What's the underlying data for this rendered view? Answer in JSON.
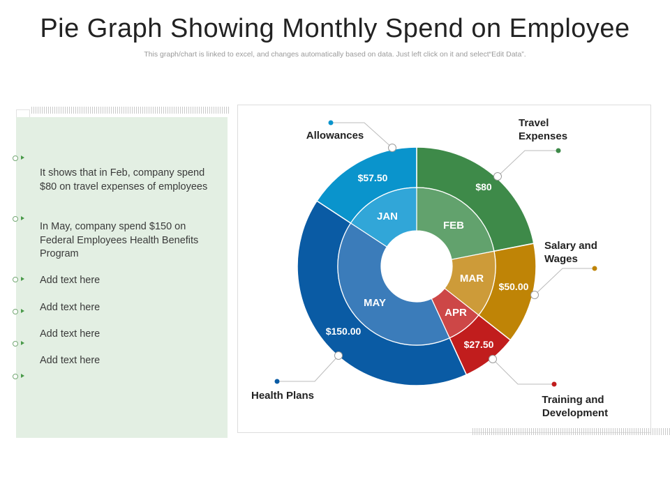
{
  "title": "Pie Graph Showing Monthly Spend on Employee",
  "subtitle": "This graph/chart is linked to excel, and changes automatically based on data. Just left click on it and select“Edit Data”.",
  "bullets": [
    {
      "text": "It shows that in Feb, company spend $80 on travel expenses of employees"
    },
    {
      "text": "In May, company spend $150 on Federal Employees Health Benefits Program"
    },
    {
      "text": "Add text here"
    },
    {
      "text": "Add text here"
    },
    {
      "text": "Add text here"
    },
    {
      "text": "Add text here"
    },
    {
      "text": ""
    }
  ],
  "chart_data": {
    "type": "pie",
    "style": "nested donut",
    "outer_ring": {
      "categories": [
        "Travel Expenses",
        "Salary and Wages",
        "Training and Development",
        "Health Plans",
        "Allowances"
      ],
      "values": [
        80,
        50,
        27.5,
        150,
        57.5
      ],
      "value_labels": [
        "$80",
        "$50.00",
        "$27.50",
        "$150.00",
        "$57.50"
      ],
      "colors": [
        "#3e8a49",
        "#bf8406",
        "#c11d1d",
        "#0a5ba4",
        "#0a94cc"
      ]
    },
    "inner_ring": {
      "categories": [
        "FEB",
        "MAR",
        "APR",
        "MAY",
        "JAN"
      ],
      "values": [
        80,
        50,
        27.5,
        150,
        57.5
      ],
      "colors": [
        "#62a26d",
        "#cd9b39",
        "#cd4747",
        "#3b7cba",
        "#31a6d8"
      ]
    },
    "callout_marker_colors": [
      "#3e8a49",
      "#bf8406",
      "#c11d1d",
      "#0a5ba4",
      "#0a94cc"
    ]
  }
}
